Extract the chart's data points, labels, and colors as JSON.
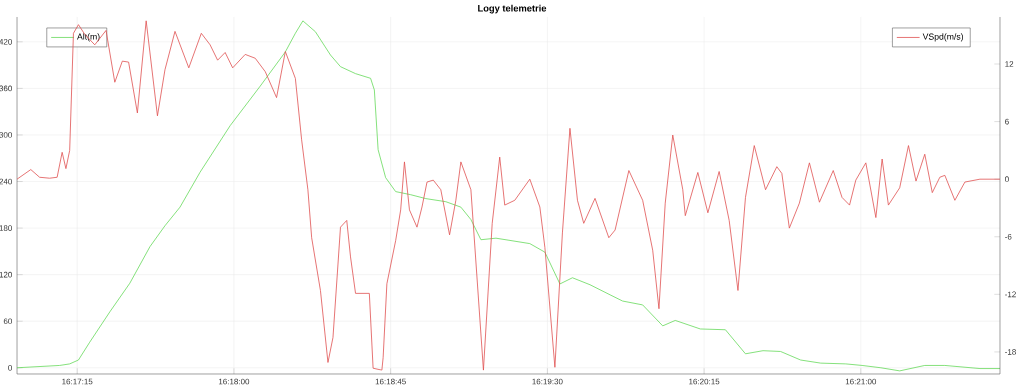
{
  "chart_data": {
    "type": "line",
    "title": "Logy telemetrie",
    "xlim": [
      16.2827,
      16.3611
    ],
    "xticks": [
      {
        "value": 16.2875,
        "label": "16:17:15"
      },
      {
        "value": 16.3,
        "label": "16:18:00"
      },
      {
        "value": 16.3125,
        "label": "16:18:45"
      },
      {
        "value": 16.325,
        "label": "16:19:30"
      },
      {
        "value": 16.3375,
        "label": "16:20:15"
      },
      {
        "value": 16.35,
        "label": "16:21:00"
      }
    ],
    "ylim": [
      -8,
      452
    ],
    "yticks": [
      0,
      60,
      120,
      180,
      240,
      300,
      360,
      420
    ],
    "y2lim": [
      -20.3,
      16.9
    ],
    "y2ticks": [
      -18,
      -12,
      -6,
      0,
      6,
      12
    ],
    "grid": true,
    "legend": "top",
    "series": [
      {
        "name": "Alt(m)",
        "color": "#66d95a",
        "x": [
          16.2827,
          16.2861,
          16.2869,
          16.2876,
          16.2885,
          16.2901,
          16.2917,
          16.2933,
          16.2945,
          16.2957,
          16.2973,
          16.2997,
          16.3021,
          16.3041,
          16.3049,
          16.3055,
          16.3065,
          16.3077,
          16.3085,
          16.3097,
          16.3109,
          16.3112,
          16.3115,
          16.3121,
          16.3129,
          16.3141,
          16.3153,
          16.3169,
          16.3181,
          16.3189,
          16.3197,
          16.3209,
          16.3236,
          16.3248,
          16.326,
          16.327,
          16.3284,
          16.33,
          16.331,
          16.3326,
          16.3342,
          16.3352,
          16.3372,
          16.3392,
          16.3408,
          16.3422,
          16.3436,
          16.3452,
          16.3468,
          16.3488,
          16.3501,
          16.3516,
          16.3531,
          16.3551,
          16.3567,
          16.3595,
          16.3611
        ],
        "values": [
          0,
          3,
          5,
          10,
          33,
          72,
          109,
          156,
          183,
          207,
          252,
          312,
          363,
          407,
          431,
          447,
          433,
          403,
          388,
          379,
          373,
          358,
          281,
          245,
          227,
          223,
          218,
          214,
          207,
          191,
          165,
          167,
          160,
          149,
          108,
          116,
          107,
          94,
          86,
          81,
          54,
          61,
          50,
          49,
          18,
          22,
          21,
          10,
          6,
          5,
          3,
          0,
          -4,
          3,
          3,
          -1,
          -1
        ]
      },
      {
        "name": "VSpd(m/s)",
        "color": "#e05050",
        "axis": "y2",
        "x": [
          16.2827,
          16.2838,
          16.2845,
          16.2853,
          16.2859,
          16.2863,
          16.2866,
          16.2869,
          16.2872,
          16.2876,
          16.2881,
          16.2889,
          16.2898,
          16.2905,
          16.2911,
          16.2916,
          16.2923,
          16.293,
          16.2939,
          16.2945,
          16.2953,
          16.2964,
          16.2974,
          16.2981,
          16.2987,
          16.2993,
          16.2999,
          16.3009,
          16.3017,
          16.3025,
          16.3034,
          16.3041,
          16.3049,
          16.3054,
          16.3059,
          16.3062,
          16.3069,
          16.3075,
          16.3079,
          16.3085,
          16.309,
          16.3093,
          16.3097,
          16.3108,
          16.3111,
          16.3118,
          16.3119,
          16.3122,
          16.3129,
          16.3133,
          16.3136,
          16.314,
          16.3146,
          16.315,
          16.3154,
          16.3159,
          16.3165,
          16.3172,
          16.3177,
          16.3181,
          16.3189,
          16.3199,
          16.3206,
          16.3212,
          16.3216,
          16.3224,
          16.3236,
          16.3244,
          16.3248,
          16.3256,
          16.3262,
          16.3268,
          16.3274,
          16.3279,
          16.3288,
          16.3299,
          16.3304,
          16.3315,
          16.3326,
          16.3334,
          16.3339,
          16.3344,
          16.335,
          16.3358,
          16.336,
          16.337,
          16.3378,
          16.3387,
          16.3395,
          16.3402,
          16.3408,
          16.3415,
          16.3424,
          16.3433,
          16.3437,
          16.3443,
          16.3451,
          16.3459,
          16.3467,
          16.3478,
          16.3485,
          16.3491,
          16.3496,
          16.3504,
          16.3512,
          16.3517,
          16.3522,
          16.3531,
          16.3538,
          16.3544,
          16.3551,
          16.3557,
          16.3563,
          16.3567,
          16.3575,
          16.3583,
          16.3595,
          16.3611
        ],
        "values": [
          0,
          1.0,
          0.2,
          0.1,
          0.2,
          2.8,
          1.1,
          3.0,
          15.2,
          16.1,
          15.1,
          14.0,
          15.5,
          10.1,
          12.3,
          12.2,
          6.9,
          16.5,
          6.6,
          11.4,
          15.4,
          11.6,
          15.2,
          14.0,
          12.4,
          13.2,
          11.6,
          13.0,
          12.6,
          11.2,
          8.5,
          13.3,
          10.5,
          4.1,
          -1.1,
          -6.1,
          -11.6,
          -19.1,
          -16.5,
          -5.0,
          -4.3,
          -8.1,
          -11.9,
          -11.9,
          -19.7,
          -19.9,
          -18.6,
          -10.9,
          -6.4,
          -3.2,
          1.8,
          -3.2,
          -5.0,
          -2.9,
          -0.3,
          -0.1,
          -1.1,
          -5.8,
          -2.2,
          1.8,
          -1.1,
          -19.9,
          -4.6,
          2.3,
          -2.7,
          -2.2,
          0,
          -2.9,
          -7.1,
          -19.6,
          -5.6,
          5.3,
          -2.2,
          -4.6,
          -2.0,
          -6.1,
          -5.3,
          0.9,
          -2.2,
          -7.4,
          -13.5,
          -2.5,
          4.6,
          -1.1,
          -3.8,
          0.7,
          -3.5,
          0.8,
          -4.3,
          -11.6,
          -1.9,
          3.5,
          -1.1,
          1.3,
          0.6,
          -5.1,
          -2.5,
          1.7,
          -2.4,
          0.9,
          -1.9,
          -2.7,
          -0.1,
          1.7,
          -4.0,
          2.1,
          -2.7,
          -0.9,
          3.5,
          -0.2,
          2.6,
          -1.4,
          0.2,
          0.4,
          -2.2,
          -0.3,
          0,
          0
        ]
      }
    ]
  }
}
